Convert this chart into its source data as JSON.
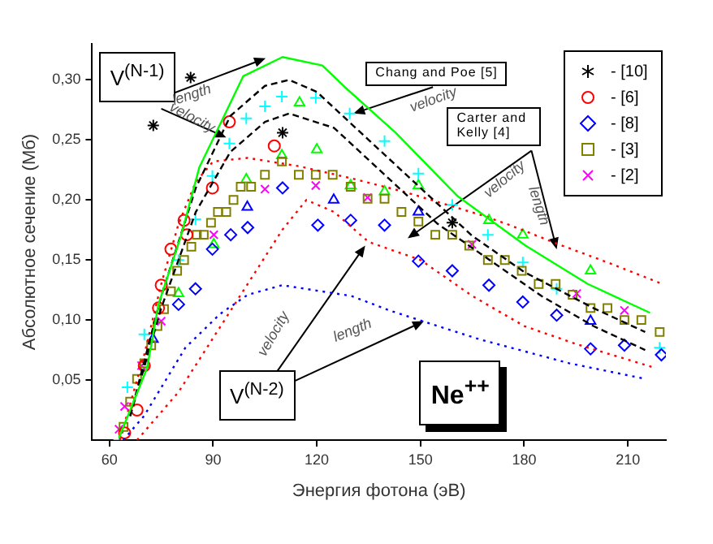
{
  "chart_data": {
    "type": "scatter",
    "xlabel": "Энергия фотона (эВ)",
    "ylabel": "Абсолютное сечение (Мб)",
    "xlim": [
      55,
      221
    ],
    "xticks": [
      60,
      90,
      120,
      150,
      180,
      210
    ],
    "ylim": [
      0,
      0.33
    ],
    "yticks": [
      {
        "value": 0.05,
        "label": "0,05"
      },
      {
        "value": 0.1,
        "label": "0,10"
      },
      {
        "value": 0.15,
        "label": "0,15"
      },
      {
        "value": 0.2,
        "label": "0,20"
      },
      {
        "value": 0.25,
        "label": "0,25"
      },
      {
        "value": 0.3,
        "label": "0,30"
      }
    ],
    "grid": false,
    "legend": "top right",
    "annotations": [
      "V$^{(N-1)}$",
      "length",
      "velocity",
      "Chang and Poe [5]",
      "velocity",
      "Carter and Kelly [4]",
      "velocity",
      "length",
      "V$^{(N-2)}$",
      "velocity",
      "length",
      "Ne$^{++}$"
    ],
    "series": [
      {
        "type": "line",
        "line_style": "solid",
        "marker": "none",
        "color": "#00ff00",
        "x": [
          62.8,
          70.9,
          74.2,
          80.7,
          86,
          98.7,
          110.1,
          121.6,
          128.1,
          142.8,
          160.8,
          180.4,
          198.4,
          216.4
        ],
        "values": [
          0.002,
          0.06,
          0.113,
          0.17,
          0.227,
          0.303,
          0.319,
          0.312,
          0.294,
          0.256,
          0.203,
          0.162,
          0.13,
          0.106
        ]
      },
      {
        "type": "line",
        "line_style": "dashed",
        "marker": "none",
        "color": "#000000",
        "x": [
          66,
          75,
          85,
          95,
          105,
          112,
          120,
          135,
          150,
          165,
          180,
          200,
          215
        ],
        "values": [
          0.02,
          0.12,
          0.21,
          0.27,
          0.295,
          0.3,
          0.29,
          0.25,
          0.21,
          0.17,
          0.14,
          0.11,
          0.09
        ]
      },
      {
        "type": "line",
        "line_style": "dashed",
        "marker": "none",
        "color": "#000000",
        "x": [
          66,
          75,
          85,
          95,
          105,
          112,
          125,
          140,
          155,
          170,
          185,
          200,
          215
        ],
        "values": [
          0.02,
          0.11,
          0.19,
          0.24,
          0.265,
          0.272,
          0.26,
          0.22,
          0.18,
          0.15,
          0.12,
          0.095,
          0.075
        ]
      },
      {
        "type": "line",
        "line_style": "dotted",
        "marker": "none",
        "color": "#ff0000",
        "x": [
          63,
          70,
          75,
          80,
          85,
          90,
          100,
          115,
          130,
          145,
          168,
          175,
          190,
          205,
          220
        ],
        "values": [
          0,
          0.07,
          0.13,
          0.18,
          0.215,
          0.232,
          0.235,
          0.228,
          0.218,
          0.207,
          0.187,
          0.18,
          0.163,
          0.147,
          0.13
        ]
      },
      {
        "type": "line",
        "line_style": "dotted",
        "marker": "none",
        "color": "#ff0000",
        "x": [
          68,
          80,
          90,
          100,
          110,
          117,
          125,
          135,
          150,
          165,
          180,
          195,
          210,
          218
        ],
        "values": [
          0,
          0.04,
          0.085,
          0.13,
          0.175,
          0.2,
          0.19,
          0.165,
          0.15,
          0.12,
          0.095,
          0.08,
          0.067,
          0.06
        ]
      },
      {
        "type": "line",
        "line_style": "dotted",
        "marker": "none",
        "color": "#0000ff",
        "x": [
          64,
          70,
          82,
          92,
          100,
          110,
          130,
          141,
          155,
          167,
          180,
          193,
          215
        ],
        "values": [
          0,
          0.02,
          0.077,
          0.105,
          0.121,
          0.129,
          0.12,
          0.108,
          0.095,
          0.084,
          0.074,
          0.064,
          0.051
        ]
      },
      {
        "name": "- [10]",
        "color": "#000000",
        "x": [
          83.5,
          72.7,
          110.1,
          159.2
        ],
        "values": [
          0.302,
          0.262,
          0.256,
          0.181
        ]
      },
      {
        "name": "- [6]",
        "marker": "circle",
        "color": "#ff0000",
        "x": [
          94.7,
          107.7,
          89.8,
          81.6,
          82.4,
          77.8,
          75,
          74.2,
          70.1,
          68,
          64.4
        ],
        "values": [
          0.265,
          0.245,
          0.21,
          0.183,
          0.171,
          0.159,
          0.129,
          0.11,
          0.062,
          0.025,
          0.006
        ]
      },
      {
        "name": "- [8]",
        "marker": "diamond",
        "color": "#0000ff",
        "x": [
          110.1,
          120.3,
          129.8,
          139.6,
          95.1,
          100,
          89.8,
          84.9,
          80,
          149.4,
          159.2,
          169.8,
          179.6,
          189.4,
          199.2,
          209,
          219.7
        ],
        "values": [
          0.21,
          0.179,
          0.183,
          0.179,
          0.171,
          0.177,
          0.159,
          0.126,
          0.113,
          0.149,
          0.141,
          0.129,
          0.115,
          0.104,
          0.076,
          0.079,
          0.071
        ]
      },
      {
        "name": "- [3]",
        "marker": "square",
        "color": "#808000",
        "x": [
          105,
          109.9,
          114.8,
          119.7,
          124.6,
          129.8,
          134.7,
          139.6,
          98,
          101,
          95.9,
          91.4,
          93.8,
          89.4,
          85.3,
          87.3,
          144.5,
          149.4,
          154.3,
          159.2,
          164.1,
          169.5,
          174.4,
          179.3,
          184.2,
          189.1,
          194,
          199.2,
          204.1,
          209,
          213.9,
          219.2,
          83.7,
          81.6,
          79.6,
          77.8,
          75.8,
          73.9,
          72.1,
          70.1,
          68,
          66,
          64.1
        ],
        "values": [
          0.221,
          0.232,
          0.221,
          0.221,
          0.221,
          0.211,
          0.201,
          0.201,
          0.211,
          0.211,
          0.2,
          0.19,
          0.19,
          0.181,
          0.171,
          0.171,
          0.19,
          0.182,
          0.171,
          0.171,
          0.162,
          0.15,
          0.15,
          0.141,
          0.13,
          0.13,
          0.121,
          0.11,
          0.11,
          0.1,
          0.1,
          0.09,
          0.161,
          0.15,
          0.141,
          0.124,
          0.109,
          0.095,
          0.079,
          0.064,
          0.051,
          0.032,
          0.011
        ]
      },
      {
        "name": "- [2]",
        "marker": "x",
        "color": "#ff00ff",
        "x": [
          105,
          119.7,
          90.2,
          134.7,
          164.9,
          195.2,
          209,
          75,
          69.3,
          64.4,
          62.8
        ],
        "values": [
          0.209,
          0.212,
          0.171,
          0.202,
          0.163,
          0.122,
          0.108,
          0.099,
          0.062,
          0.028,
          0.009
        ]
      },
      {
        "marker": "cross",
        "color": "#00ffff",
        "x": [
          109.9,
          119.7,
          105,
          99.6,
          94.7,
          89.8,
          84.9,
          129.5,
          139.6,
          149.4,
          159.2,
          169.5,
          179.6,
          189.4,
          219.2,
          80,
          70.1,
          65.2,
          62.8
        ],
        "values": [
          0.286,
          0.285,
          0.278,
          0.268,
          0.247,
          0.22,
          0.184,
          0.272,
          0.249,
          0.222,
          0.196,
          0.171,
          0.148,
          0.126,
          0.077,
          0.15,
          0.088,
          0.044,
          0
        ]
      },
      {
        "marker": "triangle",
        "color": "#00ff00",
        "x": [
          115,
          109.9,
          120,
          99.6,
          129.8,
          139.6,
          149.4,
          169.8,
          179.6,
          199.2,
          80,
          90.2
        ],
        "values": [
          0.281,
          0.237,
          0.242,
          0.217,
          0.212,
          0.207,
          0.212,
          0.183,
          0.171,
          0.141,
          0.122,
          0.163
        ]
      },
      {
        "marker": "triangle",
        "color": "#0000ff",
        "x": [
          99.9,
          124.9,
          149.4,
          199.2,
          72.6
        ],
        "values": [
          0.194,
          0.2,
          0.19,
          0.099,
          0.084
        ]
      }
    ]
  }
}
